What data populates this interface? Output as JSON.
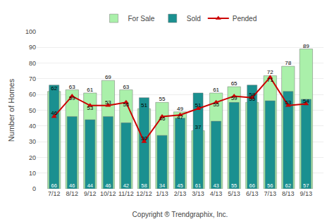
{
  "chart_data": {
    "type": "bar",
    "xlabel": "Copyright ® Trendgraphix, Inc.",
    "ylabel": "Number of Homes",
    "categories": [
      "7/12",
      "8/12",
      "9/12",
      "10/12",
      "11/12",
      "12/12",
      "1/13",
      "2/13",
      "3/13",
      "4/13",
      "5/13",
      "6/13",
      "7/13",
      "8/13",
      "9/13"
    ],
    "series": [
      {
        "name": "For Sale",
        "type": "bar",
        "color": "#aaf0aa",
        "values": [
          62,
          63,
          61,
          69,
          63,
          51,
          55,
          49,
          37,
          61,
          65,
          55,
          72,
          78,
          89
        ]
      },
      {
        "name": "Sold",
        "type": "bar",
        "color": "#1a9090",
        "values": [
          66,
          46,
          44,
          46,
          42,
          58,
          34,
          45,
          61,
          43,
          55,
          66,
          56,
          62,
          57
        ]
      },
      {
        "name": "Pended",
        "type": "line",
        "color": "#cc0000",
        "marker": "triangle-up",
        "values": [
          46,
          59,
          53,
          53,
          55,
          30,
          46,
          47,
          51,
          55,
          59,
          58,
          71,
          53,
          54
        ]
      }
    ],
    "ylim": [
      0,
      100
    ],
    "yticks": [
      0,
      10,
      20,
      30,
      40,
      50,
      60,
      70,
      80,
      90,
      100
    ],
    "grid": true,
    "data_labels": true,
    "legend": "top"
  }
}
